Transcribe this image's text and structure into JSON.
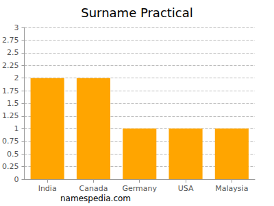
{
  "chart_data": {
    "type": "bar",
    "title": "Surname Practical",
    "categories": [
      "India",
      "Canada",
      "Germany",
      "USA",
      "Malaysia"
    ],
    "values": [
      2,
      2,
      1,
      1,
      1
    ],
    "color": "#ffa500",
    "ylim": [
      0,
      3
    ],
    "yticks": [
      0,
      0.25,
      0.5,
      0.75,
      1,
      1.25,
      1.5,
      1.75,
      2,
      2.25,
      2.5,
      2.75,
      3
    ],
    "grid": true,
    "annotation": "namespedia.com"
  }
}
